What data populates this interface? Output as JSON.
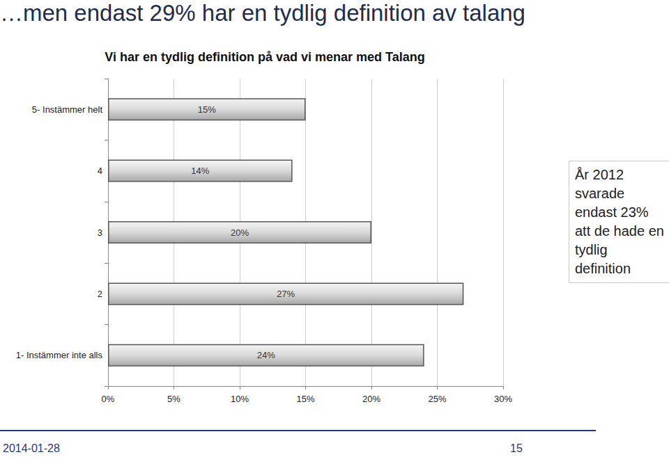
{
  "page": {
    "heading": "…men endast 29% har en tydlig definition av talang",
    "date": "2014-01-28",
    "page_number": 15
  },
  "chart_data": {
    "type": "bar",
    "orientation": "horizontal",
    "title": "Vi har en tydlig definition på vad vi menar med Talang",
    "categories": [
      "5- Instämmer helt",
      "4",
      "3",
      "2",
      "1- Instämmer inte alls"
    ],
    "values": [
      15,
      14,
      20,
      27,
      24
    ],
    "value_labels": [
      "15%",
      "14%",
      "20%",
      "27%",
      "24%"
    ],
    "color": "#d9d9d9",
    "data_labels": true,
    "grid": true,
    "xlim": [
      0,
      30
    ],
    "xticks": [
      {
        "value": 0,
        "label": "0%"
      },
      {
        "value": 5,
        "label": "5%"
      },
      {
        "value": 10,
        "label": "10%"
      },
      {
        "value": 15,
        "label": "15%"
      },
      {
        "value": 20,
        "label": "20%"
      },
      {
        "value": 25,
        "label": "25%"
      },
      {
        "value": 30,
        "label": "30%"
      }
    ],
    "annotations": [
      "År 2012 svarade endast 23% att de hade en tydlig definition"
    ]
  }
}
